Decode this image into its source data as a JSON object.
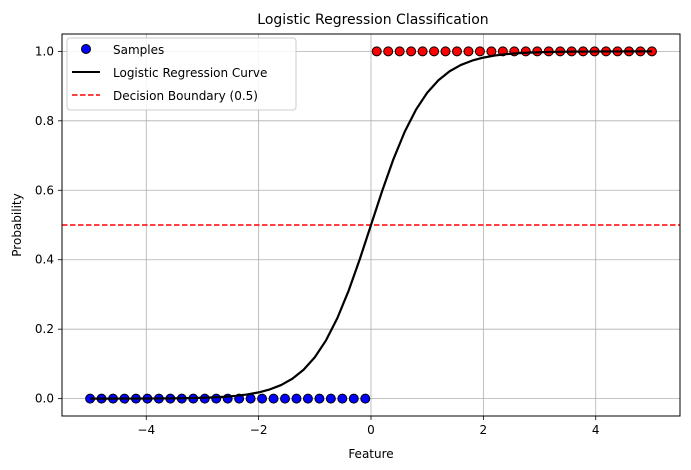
{
  "chart_data": {
    "type": "scatter",
    "title": "Logistic Regression Classification",
    "xlabel": "Feature",
    "ylabel": "Probability",
    "xlim": [
      -5.5,
      5.5
    ],
    "ylim": [
      -0.05,
      1.05
    ],
    "xticks": [
      -4,
      -2,
      0,
      2,
      4
    ],
    "yticks": [
      0.0,
      0.2,
      0.4,
      0.6,
      0.8,
      1.0
    ],
    "xtick_labels": [
      "−4",
      "−2",
      "0",
      "2",
      "4"
    ],
    "ytick_labels": [
      "0.0",
      "0.2",
      "0.4",
      "0.6",
      "0.8",
      "1.0"
    ],
    "grid": true,
    "legend_position": "top-left",
    "series": [
      {
        "name": "Samples",
        "kind": "scatter",
        "x": [
          -5.0,
          -4.7959,
          -4.5918,
          -4.3878,
          -4.1837,
          -3.9796,
          -3.7755,
          -3.5714,
          -3.3673,
          -3.1633,
          -2.9592,
          -2.7551,
          -2.551,
          -2.3469,
          -2.1429,
          -1.9388,
          -1.7347,
          -1.5306,
          -1.3265,
          -1.1224,
          -0.9184,
          -0.7143,
          -0.5102,
          -0.3061,
          -0.102,
          0.102,
          0.3061,
          0.5102,
          0.7143,
          0.9184,
          1.1224,
          1.3265,
          1.5306,
          1.7347,
          1.9388,
          2.1429,
          2.3469,
          2.551,
          2.7551,
          2.9592,
          3.1633,
          3.3673,
          3.5714,
          3.7755,
          3.9796,
          4.1837,
          4.3878,
          4.5918,
          4.7959,
          5.0
        ],
        "y": [
          0,
          0,
          0,
          0,
          0,
          0,
          0,
          0,
          0,
          0,
          0,
          0,
          0,
          0,
          0,
          0,
          0,
          0,
          0,
          0,
          0,
          0,
          0,
          0,
          0,
          1,
          1,
          1,
          1,
          1,
          1,
          1,
          1,
          1,
          1,
          1,
          1,
          1,
          1,
          1,
          1,
          1,
          1,
          1,
          1,
          1,
          1,
          1,
          1,
          1
        ],
        "colors": {
          "0": "#0000ff",
          "1": "#ff0000"
        }
      },
      {
        "name": "Logistic Regression Curve",
        "kind": "line",
        "function": "sigmoid",
        "coef": 2.0,
        "intercept": 0.0,
        "x_range": [
          -5,
          5
        ],
        "color": "#000000"
      },
      {
        "name": "Decision Boundary (0.5)",
        "kind": "hline",
        "y": 0.5,
        "color": "#ff0000",
        "style": "dashed"
      }
    ]
  }
}
